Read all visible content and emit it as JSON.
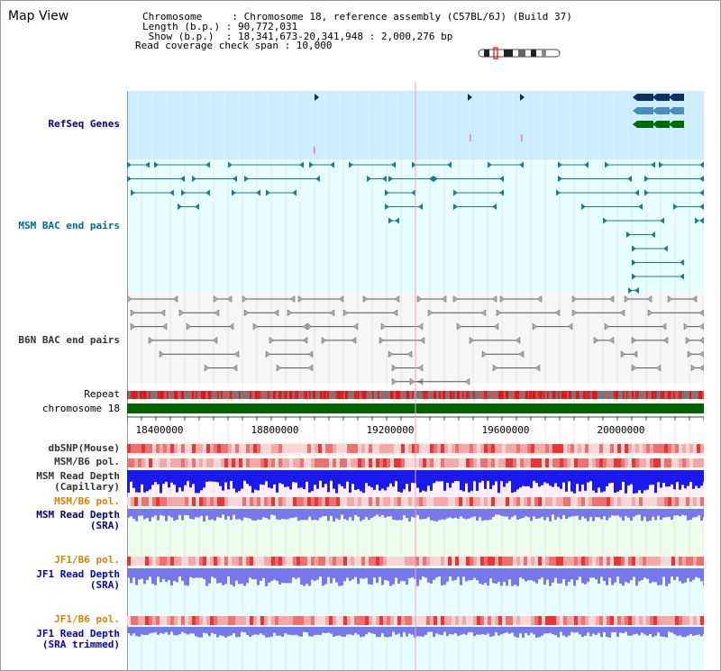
{
  "header": {
    "title": "Map View",
    "info_lines": [
      "Chromosome     : Chromosome 18, reference assembly (C57BL/6J) (Build 37)",
      "Length (b.p.) : 90,772,031",
      " Show (b.p.)  : 18,341,673-20,341,948 : 2,000,276 bp",
      "Read coverage check span : 10,000"
    ]
  },
  "tracks": {
    "refseq": "RefSeq Genes",
    "msm_bac": "MSM BAC end pairs",
    "b6n_bac": "B6N BAC end pairs",
    "repeat": "Repeat",
    "chromosome": "chromosome 18",
    "dbsnp": "dbSNP(Mouse)",
    "msm_b6_pol_1": "MSM/B6 pol.",
    "msm_depth_cap_1": "MSM Read Depth",
    "msm_depth_cap_2": "(Capillary)",
    "msm_b6_pol_2": "MSM/B6 pol.",
    "msm_depth_sra_1": "MSM Read Depth",
    "msm_depth_sra_2": "(SRA)",
    "jf1_b6_pol_1": "JF1/B6 pol.",
    "jf1_depth_sra_1": "JF1 Read Depth",
    "jf1_depth_sra_2": "(SRA)",
    "jf1_b6_pol_2": "JF1/B6 pol.",
    "jf1_depth_trim_1": "JF1 Read Depth",
    "jf1_depth_trim_2": "(SRA trimmed)"
  },
  "axis": {
    "ticks": [
      "18400000",
      "18800000",
      "19200000",
      "19600000",
      "20000000"
    ]
  },
  "colors": {
    "navy_label": "#000080",
    "teal_label": "#006b8f",
    "orange_label": "#e08000",
    "blue_label": "#0000cc",
    "chromosome_bar": "#006400",
    "refseq_bg": "#cceeff",
    "bac_bg": "#e8ffff",
    "depth_bar": "#1a1aee",
    "depth_bar_light": "#7777ee"
  }
}
